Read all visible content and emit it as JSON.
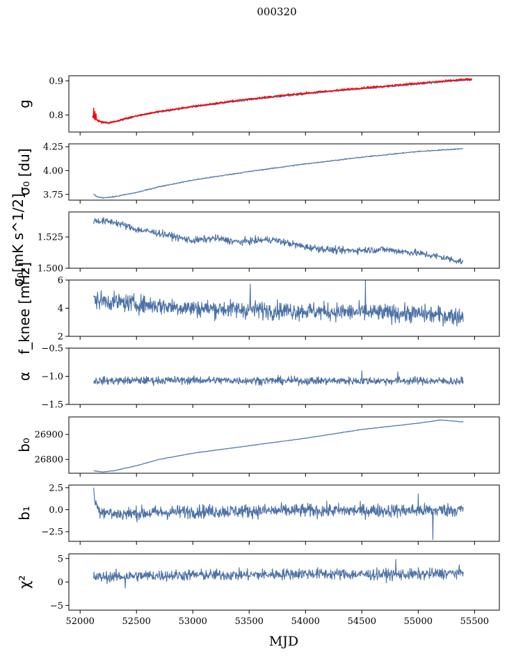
{
  "title": "000320",
  "xlabel": "MJD",
  "colors": {
    "series": "#4c72a6",
    "fit": "#ff0000"
  },
  "chart_data": {
    "type": "line",
    "title": "000320",
    "xlabel": "MJD",
    "xlim": [
      51900,
      55720
    ],
    "xticks": [
      "52000",
      "52500",
      "53000",
      "53500",
      "54000",
      "54500",
      "55000",
      "55500"
    ],
    "grid": false,
    "panels": [
      {
        "id": "g",
        "ylabel": "g",
        "ylim": [
          0.75,
          0.915
        ],
        "yticks": [
          {
            "v": 0.8,
            "label": "0.8"
          },
          {
            "v": 0.9,
            "label": "0.9"
          }
        ],
        "series": [
          {
            "color": "#4c72a6",
            "noise": 0.002,
            "spikes": [],
            "points": [
              [
                52110,
                0.795
              ],
              [
                52150,
                0.785
              ],
              [
                52200,
                0.778
              ],
              [
                52250,
                0.777
              ],
              [
                52300,
                0.779
              ],
              [
                52400,
                0.788
              ],
              [
                52500,
                0.797
              ],
              [
                52700,
                0.809
              ],
              [
                53000,
                0.824
              ],
              [
                53500,
                0.845
              ],
              [
                54000,
                0.862
              ],
              [
                54500,
                0.877
              ],
              [
                55000,
                0.891
              ],
              [
                55400,
                0.902
              ],
              [
                55480,
                0.903
              ]
            ]
          },
          {
            "color": "#ff0000",
            "noise": 0.002,
            "spikes": [
              [
                52120,
                0.82
              ],
              [
                52130,
                0.81
              ],
              [
                52140,
                0.803
              ]
            ],
            "points": [
              [
                52110,
                0.795
              ],
              [
                52150,
                0.785
              ],
              [
                52200,
                0.778
              ],
              [
                52250,
                0.777
              ],
              [
                52300,
                0.78
              ],
              [
                52400,
                0.789
              ],
              [
                52500,
                0.798
              ],
              [
                52700,
                0.81
              ],
              [
                53000,
                0.825
              ],
              [
                53500,
                0.847
              ],
              [
                54000,
                0.864
              ],
              [
                54500,
                0.879
              ],
              [
                55000,
                0.893
              ],
              [
                55400,
                0.904
              ],
              [
                55480,
                0.905
              ]
            ]
          }
        ]
      },
      {
        "id": "sigma0",
        "ylabel": "σ₀ [du]",
        "ylim": [
          3.69,
          4.28
        ],
        "yticks": [
          {
            "v": 3.75,
            "label": "3.75"
          },
          {
            "v": 4.0,
            "label": "4.00"
          },
          {
            "v": 4.25,
            "label": "4.25"
          }
        ],
        "series": [
          {
            "color": "#4c72a6",
            "noise": 0.004,
            "spikes": [],
            "points": [
              [
                52120,
                3.75
              ],
              [
                52150,
                3.725
              ],
              [
                52200,
                3.715
              ],
              [
                52300,
                3.725
              ],
              [
                52500,
                3.77
              ],
              [
                52700,
                3.83
              ],
              [
                53000,
                3.9
              ],
              [
                53500,
                3.99
              ],
              [
                54000,
                4.07
              ],
              [
                54500,
                4.14
              ],
              [
                55000,
                4.2
              ],
              [
                55400,
                4.23
              ]
            ]
          }
        ]
      },
      {
        "id": "sigma0_phys",
        "ylabel": "σ₀[mK s^1/2]",
        "ylim": [
          1.5,
          1.545
        ],
        "yticks": [
          {
            "v": 1.5,
            "label": "1.500"
          },
          {
            "v": 1.525,
            "label": "1.525"
          }
        ],
        "series": [
          {
            "color": "#4c72a6",
            "noise": 0.002,
            "spikes": [],
            "points": [
              [
                52120,
                1.538
              ],
              [
                52300,
                1.537
              ],
              [
                52500,
                1.531
              ],
              [
                52700,
                1.528
              ],
              [
                53000,
                1.522
              ],
              [
                53200,
                1.524
              ],
              [
                53400,
                1.521
              ],
              [
                53700,
                1.523
              ],
              [
                54000,
                1.517
              ],
              [
                54300,
                1.514
              ],
              [
                54700,
                1.515
              ],
              [
                55000,
                1.512
              ],
              [
                55200,
                1.509
              ],
              [
                55400,
                1.505
              ]
            ]
          }
        ]
      },
      {
        "id": "fknee",
        "ylabel": "f_knee [mHz]",
        "ylim": [
          2,
          6
        ],
        "yticks": [
          {
            "v": 2,
            "label": "2"
          },
          {
            "v": 4,
            "label": "4"
          },
          {
            "v": 6,
            "label": "6"
          }
        ],
        "series": [
          {
            "color": "#4c72a6",
            "noise": 0.45,
            "spikes": [
              [
                53510,
                5.7
              ],
              [
                54530,
                6.0
              ]
            ],
            "points": [
              [
                52120,
                4.6
              ],
              [
                52500,
                4.3
              ],
              [
                53000,
                4.0
              ],
              [
                53500,
                3.9
              ],
              [
                54000,
                3.8
              ],
              [
                54500,
                3.7
              ],
              [
                55000,
                3.6
              ],
              [
                55400,
                3.4
              ]
            ]
          }
        ]
      },
      {
        "id": "alpha",
        "ylabel": "α",
        "ylim": [
          -1.5,
          -0.5
        ],
        "yticks": [
          {
            "v": -1.5,
            "label": "−1.5"
          },
          {
            "v": -1.0,
            "label": "−1.0"
          },
          {
            "v": -0.5,
            "label": "−0.5"
          }
        ],
        "series": [
          {
            "color": "#4c72a6",
            "noise": 0.05,
            "spikes": [
              [
                54500,
                -0.9
              ],
              [
                54820,
                -0.92
              ]
            ],
            "points": [
              [
                52120,
                -1.08
              ],
              [
                53000,
                -1.07
              ],
              [
                54000,
                -1.08
              ],
              [
                55000,
                -1.08
              ],
              [
                55400,
                -1.09
              ]
            ]
          }
        ]
      },
      {
        "id": "b0",
        "ylabel": "b₀",
        "ylim": [
          26745,
          26970
        ],
        "yticks": [
          {
            "v": 26800,
            "label": "26800"
          },
          {
            "v": 26900,
            "label": "26900"
          }
        ],
        "series": [
          {
            "color": "#4c72a6",
            "noise": 0.8,
            "spikes": [],
            "points": [
              [
                52120,
                26755
              ],
              [
                52200,
                26750
              ],
              [
                52300,
                26755
              ],
              [
                52500,
                26775
              ],
              [
                52700,
                26800
              ],
              [
                53000,
                26825
              ],
              [
                53500,
                26855
              ],
              [
                54000,
                26885
              ],
              [
                54500,
                26920
              ],
              [
                55000,
                26945
              ],
              [
                55200,
                26958
              ],
              [
                55400,
                26950
              ]
            ]
          }
        ]
      },
      {
        "id": "b1",
        "ylabel": "b₁",
        "ylim": [
          -3.6,
          2.8
        ],
        "yticks": [
          {
            "v": -2.5,
            "label": "−2.5"
          },
          {
            "v": 0.0,
            "label": "0.0"
          },
          {
            "v": 2.5,
            "label": "2.5"
          }
        ],
        "series": [
          {
            "color": "#4c72a6",
            "noise": 0.55,
            "spikes": [
              [
                52120,
                2.5
              ],
              [
                55130,
                -3.4
              ],
              [
                55000,
                1.8
              ]
            ],
            "points": [
              [
                52120,
                1.5
              ],
              [
                52160,
                0.0
              ],
              [
                52300,
                -0.5
              ],
              [
                53000,
                -0.2
              ],
              [
                54000,
                -0.1
              ],
              [
                55000,
                -0.1
              ],
              [
                55400,
                0.0
              ]
            ]
          }
        ]
      },
      {
        "id": "chi2",
        "ylabel": "χ²",
        "ylim": [
          -6,
          6
        ],
        "yticks": [
          {
            "v": -5,
            "label": "−5"
          },
          {
            "v": 0,
            "label": "0"
          },
          {
            "v": 5,
            "label": "5"
          }
        ],
        "series": [
          {
            "color": "#4c72a6",
            "noise": 0.85,
            "spikes": [
              [
                54800,
                4.8
              ],
              [
                52400,
                -1.3
              ]
            ],
            "points": [
              [
                52120,
                1.0
              ],
              [
                52500,
                1.3
              ],
              [
                53000,
                1.5
              ],
              [
                53500,
                1.5
              ],
              [
                54000,
                1.8
              ],
              [
                54500,
                1.6
              ],
              [
                55000,
                1.6
              ],
              [
                55400,
                2.0
              ]
            ]
          }
        ]
      }
    ]
  }
}
